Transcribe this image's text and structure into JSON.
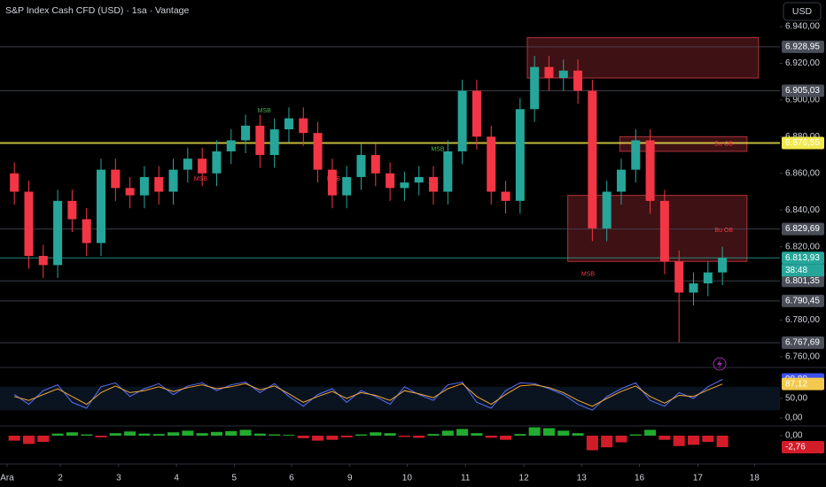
{
  "header": {
    "title": "S&P Index Cash CFD (USD) · 1sa · Vantage",
    "currency": "USD"
  },
  "chart_data": [
    {
      "type": "candlestick",
      "up_color": "#26a69a",
      "down_color": "#f23645",
      "x": [
        0.125,
        0.375,
        0.625,
        0.875,
        1.125,
        1.375,
        1.625,
        1.875,
        2.125,
        2.375,
        2.625,
        2.875,
        3.125,
        3.375,
        3.625,
        3.875,
        4.125,
        4.375,
        4.625,
        4.875,
        5.125,
        5.375,
        5.625,
        5.875,
        6.125,
        6.375,
        6.625,
        6.875,
        7.125,
        7.375,
        7.625,
        7.875,
        8.125,
        8.375,
        8.625,
        8.875,
        9.125,
        9.375,
        9.625,
        9.875,
        10.125,
        10.375,
        10.625,
        10.875,
        11.125,
        11.375,
        11.625,
        11.875,
        12.125,
        12.375
      ],
      "open": [
        6860,
        6850,
        6815,
        6810,
        6845,
        6835,
        6822,
        6862,
        6852,
        6848,
        6858,
        6850,
        6862,
        6868,
        6860,
        6872,
        6878,
        6886,
        6870,
        6884,
        6890,
        6882,
        6862,
        6848,
        6858,
        6870,
        6860,
        6852,
        6855,
        6858,
        6850,
        6872,
        6905,
        6880,
        6850,
        6845,
        6895,
        6918,
        6912,
        6916,
        6905,
        6830,
        6850,
        6862,
        6878,
        6845,
        6812,
        6795,
        6800,
        6806
      ],
      "high": [
        6866,
        6856,
        6821,
        6851,
        6851,
        6841,
        6868,
        6868,
        6858,
        6864,
        6864,
        6868,
        6874,
        6874,
        6878,
        6884,
        6892,
        6892,
        6890,
        6896,
        6896,
        6888,
        6868,
        6864,
        6876,
        6876,
        6866,
        6861,
        6864,
        6864,
        6878,
        6911,
        6911,
        6886,
        6856,
        6901,
        6924,
        6924,
        6922,
        6922,
        6911,
        6856,
        6868,
        6884,
        6884,
        6851,
        6818,
        6806,
        6812,
        6820
      ],
      "low": [
        6843,
        6808,
        6803,
        6803,
        6828,
        6815,
        6815,
        6845,
        6841,
        6841,
        6843,
        6843,
        6855,
        6853,
        6853,
        6865,
        6871,
        6863,
        6863,
        6877,
        6875,
        6855,
        6841,
        6841,
        6851,
        6853,
        6845,
        6845,
        6848,
        6843,
        6843,
        6865,
        6873,
        6843,
        6838,
        6838,
        6888,
        6905,
        6905,
        6898,
        6823,
        6823,
        6843,
        6855,
        6838,
        6805,
        6768,
        6788,
        6793,
        6799
      ],
      "close": [
        6850,
        6815,
        6810,
        6845,
        6835,
        6822,
        6862,
        6852,
        6848,
        6858,
        6850,
        6862,
        6868,
        6860,
        6872,
        6878,
        6886,
        6870,
        6884,
        6890,
        6882,
        6862,
        6848,
        6858,
        6870,
        6860,
        6852,
        6855,
        6858,
        6850,
        6872,
        6905,
        6880,
        6850,
        6845,
        6895,
        6918,
        6912,
        6916,
        6905,
        6830,
        6850,
        6862,
        6878,
        6845,
        6812,
        6795,
        6800,
        6806,
        6814
      ],
      "xlim": [
        -0.123,
        13.37
      ],
      "ylim": [
        6756.6,
        6954.5
      ],
      "yticks": [
        {
          "value": 6940,
          "label": "6.940,00"
        },
        {
          "value": 6920,
          "label": "6.920,00"
        },
        {
          "value": 6900,
          "label": "6.900,00"
        },
        {
          "value": 6880,
          "label": "6.880,00"
        },
        {
          "value": 6860,
          "label": "6.860,00"
        },
        {
          "value": 6840,
          "label": "6.840,00"
        },
        {
          "value": 6820,
          "label": "6.820,00"
        },
        {
          "value": 6780,
          "label": "6.780,00"
        },
        {
          "value": 6760,
          "label": "6.760,00"
        }
      ],
      "xticks": [
        {
          "value": 0,
          "label": "Ara"
        },
        {
          "value": 0.92,
          "label": "2"
        },
        {
          "value": 1.93,
          "label": "3"
        },
        {
          "value": 2.93,
          "label": "4"
        },
        {
          "value": 3.93,
          "label": "5"
        },
        {
          "value": 4.92,
          "label": "6"
        },
        {
          "value": 5.93,
          "label": "9"
        },
        {
          "value": 6.92,
          "label": "10"
        },
        {
          "value": 7.93,
          "label": "11"
        },
        {
          "value": 8.94,
          "label": "12"
        },
        {
          "value": 9.94,
          "label": "13"
        },
        {
          "value": 10.94,
          "label": "16"
        },
        {
          "value": 11.95,
          "label": "17"
        },
        {
          "value": 12.93,
          "label": "18"
        }
      ],
      "levels": [
        {
          "value": 6928.95,
          "label": "6.928,95",
          "color": "#4a4e59"
        },
        {
          "value": 6905.03,
          "label": "6.905,03",
          "color": "#4a4e59"
        },
        {
          "value": 6876.55,
          "label": "6.876,55",
          "color": "#f2e94e"
        },
        {
          "value": 6829.69,
          "label": "6.829,69",
          "color": "#4a4e59"
        },
        {
          "value": 6813.93,
          "label": "6.813,93",
          "color": "#26a69a"
        },
        {
          "value": 6801.35,
          "label": "6.801,35",
          "color": "#4a4e59"
        },
        {
          "value": 6790.45,
          "label": "6.790,45",
          "color": "#4a4e59"
        },
        {
          "value": 6767.69,
          "label": "6.767,69",
          "color": "#4a4e59"
        }
      ],
      "countdown": "38:48",
      "zones": [
        {
          "x": [
            9.0,
            13.0
          ],
          "y": [
            6912,
            6934
          ],
          "color": "#b2323a"
        },
        {
          "x": [
            10.6,
            12.8
          ],
          "y": [
            6872,
            6880
          ],
          "color": "#b2323a"
        },
        {
          "x": [
            9.7,
            12.8
          ],
          "y": [
            6812,
            6848
          ],
          "color": "#b2323a"
        }
      ],
      "annotations": [
        {
          "text": "MSB",
          "x": 4.45,
          "y": 6894,
          "color": "#4caf50"
        },
        {
          "text": "MSB",
          "x": 3.35,
          "y": 6857,
          "color": "#f23645"
        },
        {
          "text": "MSB",
          "x": 5.65,
          "y": 6857,
          "color": "#f23645"
        },
        {
          "text": "MSB",
          "x": 7.45,
          "y": 6873,
          "color": "#4caf50"
        },
        {
          "text": "MSB",
          "x": 10.05,
          "y": 6805,
          "color": "#f23645"
        },
        {
          "text": "Bu-OB",
          "x": 12.4,
          "y": 6876,
          "color": "#f23645"
        },
        {
          "text": "Bu OB",
          "x": 12.4,
          "y": 6829,
          "color": "#f23645"
        }
      ]
    },
    {
      "type": "line",
      "x": [
        0.125,
        0.375,
        0.625,
        0.875,
        1.125,
        1.375,
        1.625,
        1.875,
        2.125,
        2.375,
        2.625,
        2.875,
        3.125,
        3.375,
        3.625,
        3.875,
        4.125,
        4.375,
        4.625,
        4.875,
        5.125,
        5.375,
        5.625,
        5.875,
        6.125,
        6.375,
        6.625,
        6.875,
        7.125,
        7.375,
        7.625,
        7.875,
        8.125,
        8.375,
        8.625,
        8.875,
        9.125,
        9.375,
        9.625,
        9.875,
        10.125,
        10.375,
        10.625,
        10.875,
        11.125,
        11.375,
        11.625,
        11.875,
        12.125,
        12.375
      ],
      "series": [
        {
          "color": "#5b6ef5",
          "values": [
            60,
            35,
            70,
            85,
            40,
            25,
            80,
            90,
            55,
            75,
            88,
            60,
            82,
            90,
            70,
            85,
            92,
            65,
            88,
            55,
            30,
            60,
            75,
            40,
            70,
            55,
            35,
            80,
            60,
            45,
            85,
            92,
            40,
            25,
            70,
            90,
            88,
            75,
            60,
            35,
            20,
            55,
            75,
            90,
            45,
            30,
            65,
            50,
            80,
            98.89
          ]
        },
        {
          "color": "#f0a830",
          "values": [
            55,
            45,
            60,
            75,
            55,
            35,
            65,
            82,
            65,
            70,
            80,
            68,
            78,
            85,
            75,
            80,
            88,
            72,
            82,
            62,
            40,
            55,
            68,
            50,
            65,
            58,
            45,
            70,
            62,
            52,
            75,
            88,
            55,
            35,
            60,
            82,
            85,
            78,
            65,
            45,
            30,
            50,
            68,
            82,
            55,
            38,
            58,
            55,
            72,
            87.12
          ]
        }
      ],
      "xlim": [
        -0.123,
        13.37
      ],
      "ylim": [
        -18.2,
        118.2
      ],
      "yticks": [
        {
          "value": 50,
          "label": "50,00"
        },
        {
          "value": 0,
          "label": "0,00"
        }
      ],
      "badges": [
        {
          "value": 98.89,
          "label": "98,89",
          "color": "#3d51f0"
        },
        {
          "value": 87.12,
          "label": "87,12",
          "color": "#f2c94c"
        }
      ]
    },
    {
      "type": "bar",
      "up_color": "#22ab2e",
      "down_color": "#d31c2a",
      "x": [
        0.125,
        0.375,
        0.625,
        0.875,
        1.125,
        1.375,
        1.625,
        1.875,
        2.125,
        2.375,
        2.625,
        2.875,
        3.125,
        3.375,
        3.625,
        3.875,
        4.125,
        4.375,
        4.625,
        4.875,
        5.125,
        5.375,
        5.625,
        5.875,
        6.125,
        6.375,
        6.625,
        6.875,
        7.125,
        7.375,
        7.625,
        7.875,
        8.125,
        8.375,
        8.625,
        8.875,
        9.125,
        9.375,
        9.625,
        9.875,
        10.125,
        10.375,
        10.625,
        10.875,
        11.125,
        11.375,
        11.625,
        11.875,
        12.125,
        12.375
      ],
      "values": [
        -1.2,
        -2.0,
        -1.5,
        0.5,
        0.8,
        0.3,
        -0.4,
        0.6,
        1.0,
        0.5,
        0.4,
        0.8,
        1.2,
        0.6,
        0.9,
        1.1,
        1.4,
        0.5,
        0.3,
        0.2,
        -0.6,
        -1.2,
        -1.0,
        -0.4,
        0.3,
        0.8,
        0.6,
        -0.3,
        -0.5,
        0.4,
        1.2,
        1.6,
        0.6,
        -0.5,
        -1.0,
        0.4,
        2.0,
        1.8,
        1.2,
        0.6,
        -3.5,
        -2.8,
        -1.6,
        0.3,
        1.4,
        -1.0,
        -2.5,
        -2.2,
        -1.5,
        -2.76
      ],
      "xlim": [
        -0.123,
        13.37
      ],
      "ylim": [
        -5.95,
        2.13
      ],
      "yticks": [
        {
          "value": 0,
          "label": "0,00"
        }
      ],
      "badges": [
        {
          "value": -2.76,
          "label": "-2,76",
          "color": "#d31c2a"
        }
      ]
    }
  ]
}
